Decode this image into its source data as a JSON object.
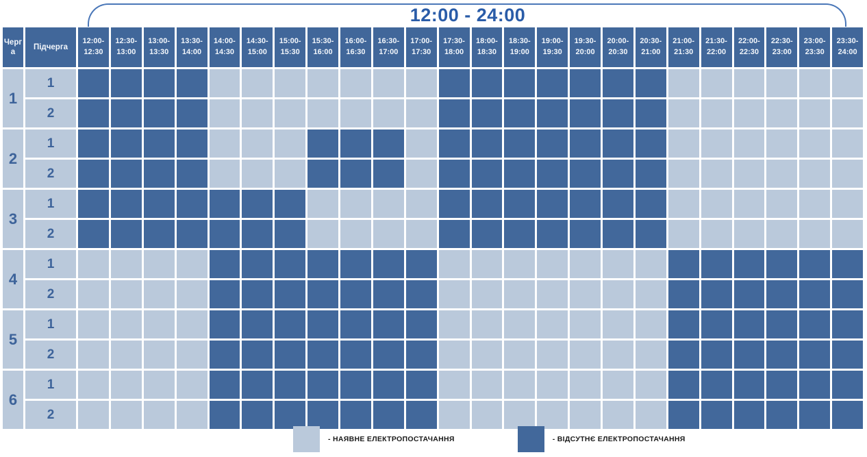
{
  "title": "12:00 - 24:00",
  "colors": {
    "power_available": "#BAC9DB",
    "power_absent": "#42689B",
    "header_background": "#41679A",
    "header_text": "#F2F6FB",
    "label_text": "#3D639A",
    "title_text": "#2A5CA8",
    "bracket_line": "#4A77B8",
    "gridline": "#FFFFFF"
  },
  "chart_data": {
    "type": "heatmap",
    "title": "12:00 - 24:00",
    "legend_position": "bottom",
    "row_header_labels": [
      "Черга",
      "Підчерга"
    ],
    "columns": [
      "12:00-12:30",
      "12:30-13:00",
      "13:00-13:30",
      "13:30-14:00",
      "14:00-14:30",
      "14:30-15:00",
      "15:00-15:30",
      "15:30-16:00",
      "16:00-16:30",
      "16:30-17:00",
      "17:00-17:30",
      "17:30-18:00",
      "18:00-18:30",
      "18:30-19:00",
      "19:00-19:30",
      "19:30-20:00",
      "20:00-20:30",
      "20:30-21:00",
      "21:00-21:30",
      "21:30-22:00",
      "22:00-22:30",
      "22:30-23:00",
      "23:00-23:30",
      "23:30-24:00"
    ],
    "cell_encoding": {
      "0": "наявне електропостачання (light)",
      "1": "відсутнє електропостачання (dark)"
    },
    "rows": [
      {
        "queue": "1",
        "subqueue": "1",
        "outage": "111100000001111111000000"
      },
      {
        "queue": "1",
        "subqueue": "2",
        "outage": "111100000001111111000000"
      },
      {
        "queue": "2",
        "subqueue": "1",
        "outage": "111100011101111111000000"
      },
      {
        "queue": "2",
        "subqueue": "2",
        "outage": "111100011101111111000000"
      },
      {
        "queue": "3",
        "subqueue": "1",
        "outage": "111111100001111111000000"
      },
      {
        "queue": "3",
        "subqueue": "2",
        "outage": "111111100001111111000000"
      },
      {
        "queue": "4",
        "subqueue": "1",
        "outage": "000011111110000000111111"
      },
      {
        "queue": "4",
        "subqueue": "2",
        "outage": "000011111110000000111111"
      },
      {
        "queue": "5",
        "subqueue": "1",
        "outage": "000011111110000000111111"
      },
      {
        "queue": "5",
        "subqueue": "2",
        "outage": "000011111110000000111111"
      },
      {
        "queue": "6",
        "subqueue": "1",
        "outage": "000011111110000000111111"
      },
      {
        "queue": "6",
        "subqueue": "2",
        "outage": "000011111110000000111111"
      }
    ],
    "legend": [
      {
        "color": "#BAC9DB",
        "label": "- НАЯВНЕ ЕЛЕКТРОПОСТАЧАННЯ"
      },
      {
        "color": "#42689B",
        "label": "- ВІДСУТНЄ ЕЛЕКТРОПОСТАЧАННЯ"
      }
    ]
  }
}
